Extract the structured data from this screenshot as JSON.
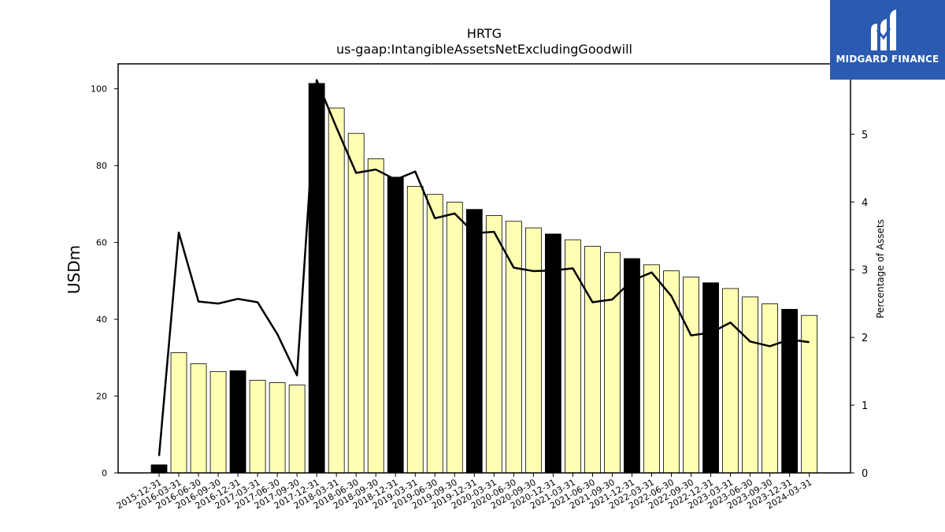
{
  "chart_data": {
    "type": "bar",
    "title": "HRTG",
    "subtitle": "us-gaap:IntangibleAssetsNetExcludingGoodwill",
    "ylabel": "USDm",
    "ylabel_right": "Percentage of Assets",
    "ylim": [
      0,
      106.5
    ],
    "ylim_right": [
      0,
      6.04
    ],
    "yticks": [
      0,
      20,
      40,
      60,
      80,
      100
    ],
    "yticks_right": [
      0,
      1,
      2,
      3,
      4,
      5
    ],
    "grid": false,
    "categories": [
      "2015-12-31",
      "2016-03-31",
      "2016-06-30",
      "2016-09-30",
      "2016-12-31",
      "2017-03-31",
      "2017-06-30",
      "2017-09-30",
      "2017-12-31",
      "2018-03-31",
      "2018-06-30",
      "2018-09-30",
      "2018-12-31",
      "2019-03-31",
      "2019-06-30",
      "2019-09-30",
      "2019-12-31",
      "2020-03-31",
      "2020-06-30",
      "2020-09-30",
      "2020-12-31",
      "2021-03-31",
      "2021-06-30",
      "2021-09-30",
      "2021-12-31",
      "2022-03-31",
      "2022-06-30",
      "2022-09-30",
      "2022-12-31",
      "2023-03-31",
      "2023-06-30",
      "2023-09-30",
      "2023-12-31",
      "2024-03-31"
    ],
    "series": [
      {
        "type": "bar",
        "axis": "left",
        "values": [
          2.1,
          31.3,
          28.4,
          26.4,
          26.6,
          24.1,
          23.5,
          22.9,
          101.4,
          95.0,
          88.4,
          81.8,
          77.0,
          74.6,
          72.5,
          70.5,
          68.6,
          67.0,
          65.5,
          63.8,
          62.2,
          60.7,
          59.0,
          57.4,
          55.8,
          54.2,
          52.6,
          51.0,
          49.5,
          48.0,
          45.8,
          44.0,
          42.6,
          41.0
        ],
        "colors": {
          "annual": "#000000",
          "quarterly": "#ffffb3"
        }
      },
      {
        "type": "line",
        "axis": "right",
        "values": [
          0.25,
          3.55,
          2.53,
          2.5,
          2.57,
          2.52,
          2.05,
          1.44,
          5.8,
          5.1,
          4.43,
          4.48,
          4.33,
          4.45,
          3.76,
          3.83,
          3.54,
          3.56,
          3.03,
          2.98,
          2.99,
          3.02,
          2.52,
          2.56,
          2.84,
          2.96,
          2.61,
          2.03,
          2.07,
          2.22,
          1.94,
          1.87,
          1.97,
          1.93
        ],
        "color": "#000000"
      }
    ]
  },
  "logo": {
    "text": "MIDGARD FINANCE",
    "background": "#2a5bb0"
  }
}
